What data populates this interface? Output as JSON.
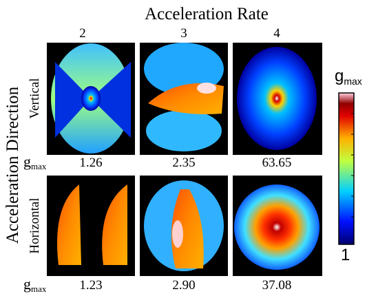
{
  "title": "Acceleration Rate",
  "y_title": "Acceleration Direction",
  "columns": [
    "2",
    "3",
    "4"
  ],
  "gmax_symbol": {
    "base": "g",
    "sub": "max"
  },
  "rows": [
    {
      "label": "Vertical",
      "values": [
        "1.26",
        "2.35",
        "63.65"
      ]
    },
    {
      "label": "Horizontal",
      "values": [
        "1.23",
        "2.90",
        "37.08"
      ]
    }
  ],
  "colorbar": {
    "label": "g",
    "label_sub": "max",
    "min_label": "1"
  }
}
